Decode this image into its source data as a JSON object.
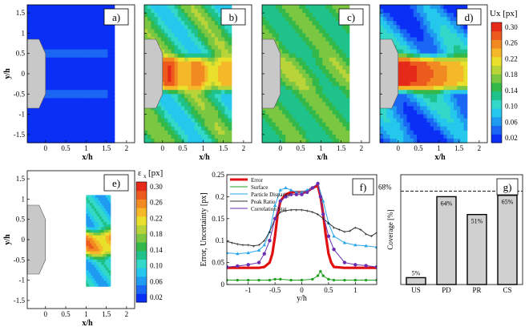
{
  "colormap": {
    "colors": [
      "#0a2ff5",
      "#1a66f5",
      "#1f9bf0",
      "#25c8ec",
      "#33d8c9",
      "#1ec28a",
      "#33b84a",
      "#7cc742",
      "#b8d439",
      "#e8e02a",
      "#f5b828",
      "#f28a22",
      "#ec5a1e",
      "#e62a1a"
    ]
  },
  "colorbar_top": {
    "title": "Ux [px]",
    "ticks": [
      "0.30",
      "0.26",
      "0.22",
      "0.18",
      "0.14",
      "0.10",
      "0.06",
      "0.02"
    ]
  },
  "colorbar_bottom": {
    "title_main": "ε",
    "title_sub": "x",
    "title_unit": "[px]",
    "ticks": [
      "0.30",
      "0.26",
      "0.22",
      "0.18",
      "0.14",
      "0.10",
      "0.06",
      "0.02"
    ]
  },
  "contour_panels": {
    "ylabel": "y/h",
    "xlabel": "x/h",
    "yticks": [
      "1.5",
      "1",
      "0.5",
      "0",
      "-0.5",
      "-1",
      "-1.5"
    ],
    "xticks": [
      "0",
      "0.5",
      "1",
      "1.5",
      "2"
    ],
    "labels": [
      "a)",
      "b)",
      "c)",
      "d)",
      "e)"
    ]
  },
  "chart_data": [
    {
      "type": "line",
      "panel": "f)",
      "xlabel": "y/h",
      "ylabel": "Error, Uncertainty [px]",
      "xlim": [
        -1.4,
        1.4
      ],
      "ylim": [
        0,
        0.25
      ],
      "xticks": [
        "-1",
        "-0.5",
        "0",
        "0.5",
        "1"
      ],
      "yticks": [
        "0",
        "0.05",
        "0.1",
        "0.15",
        "0.2",
        "0.25"
      ],
      "series": [
        {
          "name": "Error",
          "color": "#e01010",
          "x": [
            -1.4,
            -1.2,
            -1.0,
            -0.8,
            -0.7,
            -0.6,
            -0.55,
            -0.5,
            -0.45,
            -0.4,
            -0.3,
            -0.2,
            -0.1,
            0,
            0.1,
            0.2,
            0.3,
            0.35,
            0.4,
            0.45,
            0.5,
            0.55,
            0.6,
            0.8,
            1.0,
            1.2,
            1.4
          ],
          "y": [
            0.038,
            0.038,
            0.038,
            0.038,
            0.04,
            0.05,
            0.07,
            0.11,
            0.16,
            0.19,
            0.205,
            0.21,
            0.21,
            0.21,
            0.212,
            0.22,
            0.225,
            0.2,
            0.16,
            0.11,
            0.07,
            0.05,
            0.04,
            0.038,
            0.038,
            0.038,
            0.038
          ]
        },
        {
          "name": "Surface",
          "color": "#22a022",
          "x": [
            -1.4,
            -1.2,
            -1.0,
            -0.8,
            -0.6,
            -0.5,
            -0.4,
            -0.2,
            0,
            0.2,
            0.3,
            0.35,
            0.4,
            0.5,
            0.6,
            0.8,
            1.0,
            1.2,
            1.4
          ],
          "y": [
            0.01,
            0.01,
            0.01,
            0.01,
            0.01,
            0.012,
            0.012,
            0.01,
            0.01,
            0.012,
            0.02,
            0.03,
            0.02,
            0.012,
            0.01,
            0.01,
            0.01,
            0.01,
            0.01
          ]
        },
        {
          "name": "Particle Disparity",
          "color": "#2aa6e8",
          "x": [
            -1.4,
            -1.2,
            -1.0,
            -0.8,
            -0.7,
            -0.6,
            -0.5,
            -0.4,
            -0.3,
            -0.2,
            -0.1,
            0,
            0.1,
            0.2,
            0.3,
            0.4,
            0.5,
            0.6,
            0.8,
            1.0,
            1.2,
            1.4
          ],
          "y": [
            0.072,
            0.07,
            0.072,
            0.078,
            0.09,
            0.12,
            0.18,
            0.215,
            0.22,
            0.215,
            0.21,
            0.21,
            0.215,
            0.22,
            0.23,
            0.19,
            0.14,
            0.11,
            0.095,
            0.09,
            0.088,
            0.085
          ]
        },
        {
          "name": "Peak Ratio",
          "color": "#333333",
          "x": [
            -1.4,
            -1.3,
            -1.2,
            -1.1,
            -1.0,
            -0.9,
            -0.8,
            -0.7,
            -0.6,
            -0.5,
            -0.4,
            -0.3,
            -0.2,
            -0.1,
            0,
            0.1,
            0.2,
            0.3,
            0.4,
            0.5,
            0.6,
            0.7,
            0.8,
            0.9,
            1.0,
            1.1,
            1.2,
            1.3,
            1.4
          ],
          "y": [
            0.098,
            0.095,
            0.092,
            0.09,
            0.09,
            0.088,
            0.09,
            0.1,
            0.12,
            0.15,
            0.165,
            0.168,
            0.17,
            0.17,
            0.17,
            0.168,
            0.165,
            0.16,
            0.15,
            0.14,
            0.13,
            0.125,
            0.12,
            0.122,
            0.13,
            0.125,
            0.115,
            0.11,
            0.118
          ]
        },
        {
          "name": "Correlation Stat",
          "color": "#6a2fb0",
          "x": [
            -1.4,
            -1.2,
            -1.0,
            -0.8,
            -0.7,
            -0.6,
            -0.5,
            -0.4,
            -0.3,
            -0.2,
            -0.1,
            0,
            0.1,
            0.2,
            0.3,
            0.35,
            0.4,
            0.5,
            0.6,
            0.8,
            1.0,
            1.2,
            1.4
          ],
          "y": [
            0.04,
            0.042,
            0.045,
            0.05,
            0.07,
            0.1,
            0.15,
            0.19,
            0.2,
            0.205,
            0.205,
            0.205,
            0.21,
            0.22,
            0.23,
            0.2,
            0.16,
            0.11,
            0.08,
            0.05,
            0.045,
            0.043,
            0.04
          ]
        }
      ],
      "legend": "top-left"
    },
    {
      "type": "bar",
      "panel": "g)",
      "ylabel": "Coverage [%]",
      "categories": [
        "US",
        "PD",
        "PR",
        "CS"
      ],
      "values": [
        5,
        64,
        51,
        65
      ],
      "data_labels": [
        "5%",
        "64%",
        "51%",
        "65%"
      ],
      "ylim": [
        0,
        80
      ],
      "reference_line": {
        "value": 68,
        "label": "68%"
      },
      "color": "#d0d0d0"
    }
  ]
}
